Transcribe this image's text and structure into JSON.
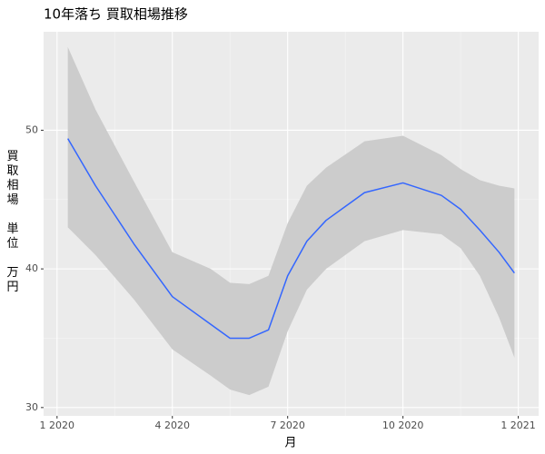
{
  "chart_data": {
    "type": "line",
    "title": "10年落ち 買取相場推移",
    "xlabel": "月",
    "ylabel": "買取相場 単位 万円",
    "x": [
      0.28,
      1,
      2,
      3,
      4,
      4.5,
      5,
      5.5,
      6,
      6.5,
      7,
      8,
      9,
      10,
      10.5,
      11,
      11.5,
      11.9
    ],
    "series": [
      {
        "color": "#3366ff",
        "band_color": "#cccccc",
        "values": [
          49.4,
          46.0,
          41.8,
          38.0,
          36.0,
          35.0,
          35.0,
          35.6,
          39.5,
          42.0,
          43.5,
          45.5,
          46.2,
          45.3,
          44.3,
          42.8,
          41.2,
          39.7
        ],
        "lower": [
          43.0,
          41.0,
          37.8,
          34.2,
          32.3,
          31.3,
          30.9,
          31.5,
          35.5,
          38.5,
          40.0,
          42.0,
          42.8,
          42.5,
          41.5,
          39.5,
          36.5,
          33.6
        ],
        "upper": [
          56.0,
          51.5,
          46.3,
          41.2,
          40.0,
          39.0,
          38.9,
          39.5,
          43.3,
          46.0,
          47.3,
          49.2,
          49.6,
          48.2,
          47.2,
          46.4,
          46.0,
          45.8
        ]
      }
    ],
    "xlim": [
      -0.35,
      12.53
    ],
    "xticks": [
      {
        "value": 0,
        "label": "1 2020"
      },
      {
        "value": 3,
        "label": "4 2020"
      },
      {
        "value": 6,
        "label": "7 2020"
      },
      {
        "value": 9,
        "label": "10 2020"
      },
      {
        "value": 12,
        "label": "1 2021"
      }
    ],
    "ylim": [
      29.4,
      57.1
    ],
    "yticks": [
      30,
      40,
      50
    ],
    "grid": true
  }
}
